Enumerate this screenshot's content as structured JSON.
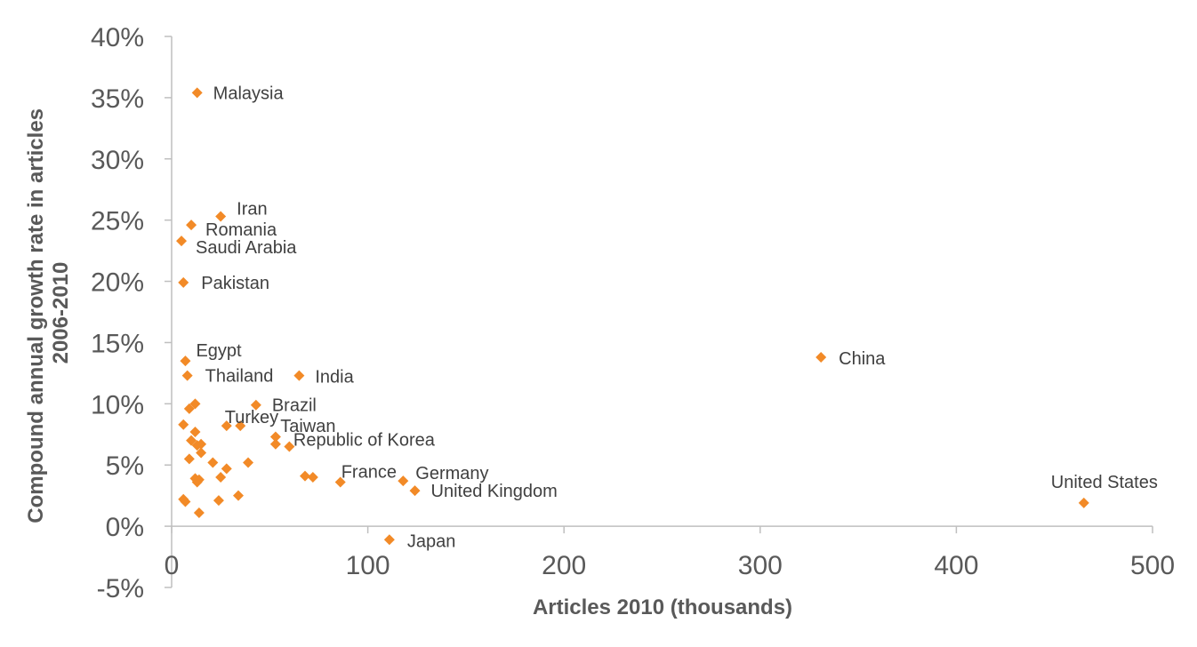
{
  "chart_data": {
    "type": "scatter",
    "xlabel": "Articles 2010 (thousands)",
    "ylabel_lines": [
      "Compound annual growth rate in articles",
      "2006-2010"
    ],
    "xlim": [
      0,
      500
    ],
    "ylim": [
      -5,
      40
    ],
    "x_ticks": [
      {
        "value": 0,
        "label": "0"
      },
      {
        "value": 100,
        "label": "100"
      },
      {
        "value": 200,
        "label": "200"
      },
      {
        "value": 300,
        "label": "300"
      },
      {
        "value": 400,
        "label": "400"
      },
      {
        "value": 500,
        "label": "500"
      }
    ],
    "y_ticks": [
      {
        "value": 40,
        "label": "40%"
      },
      {
        "value": 35,
        "label": "35%"
      },
      {
        "value": 30,
        "label": "30%"
      },
      {
        "value": 25,
        "label": "25%"
      },
      {
        "value": 20,
        "label": "20%"
      },
      {
        "value": 15,
        "label": "15%"
      },
      {
        "value": 10,
        "label": "10%"
      },
      {
        "value": 5,
        "label": "5%"
      },
      {
        "value": 0,
        "label": "0%"
      },
      {
        "value": -5,
        "label": "-5%"
      }
    ],
    "grid": false,
    "marker_color": "#f28a27",
    "points": [
      {
        "x": 13,
        "y": 35.4,
        "label": "Malaysia"
      },
      {
        "x": 25,
        "y": 25.3,
        "label": "Iran"
      },
      {
        "x": 10,
        "y": 24.6,
        "label": "Romania"
      },
      {
        "x": 5,
        "y": 23.3,
        "label": "Saudi Arabia"
      },
      {
        "x": 6,
        "y": 19.9,
        "label": "Pakistan"
      },
      {
        "x": 7,
        "y": 13.5,
        "label": "Egypt"
      },
      {
        "x": 8,
        "y": 12.3,
        "label": "Thailand"
      },
      {
        "x": 65,
        "y": 12.3,
        "label": "India"
      },
      {
        "x": 331,
        "y": 13.8,
        "label": "China"
      },
      {
        "x": 43,
        "y": 9.9,
        "label": "Brazil"
      },
      {
        "x": 28,
        "y": 8.2,
        "label": "Turkey"
      },
      {
        "x": 35,
        "y": 8.2,
        "label": "Taiwan"
      },
      {
        "x": 53,
        "y": 7.3,
        "label": "Republic of Korea"
      },
      {
        "x": 86,
        "y": 3.6,
        "label": "France"
      },
      {
        "x": 118,
        "y": 3.7,
        "label": "Germany"
      },
      {
        "x": 124,
        "y": 2.9,
        "label": "United Kingdom"
      },
      {
        "x": 465,
        "y": 1.9,
        "label": "United States"
      },
      {
        "x": 111,
        "y": -1.1,
        "label": "Japan"
      },
      {
        "x": 9,
        "y": 9.6
      },
      {
        "x": 12,
        "y": 10.0
      },
      {
        "x": 6,
        "y": 8.3
      },
      {
        "x": 12,
        "y": 7.7
      },
      {
        "x": 10,
        "y": 7.0
      },
      {
        "x": 13,
        "y": 6.6
      },
      {
        "x": 15,
        "y": 6.7
      },
      {
        "x": 15,
        "y": 6.0
      },
      {
        "x": 9,
        "y": 5.5
      },
      {
        "x": 21,
        "y": 5.2
      },
      {
        "x": 28,
        "y": 4.7
      },
      {
        "x": 25,
        "y": 4.0
      },
      {
        "x": 12,
        "y": 3.9
      },
      {
        "x": 14,
        "y": 3.8
      },
      {
        "x": 13,
        "y": 3.6
      },
      {
        "x": 39,
        "y": 5.2
      },
      {
        "x": 53,
        "y": 6.7
      },
      {
        "x": 60,
        "y": 6.5
      },
      {
        "x": 68,
        "y": 4.1
      },
      {
        "x": 72,
        "y": 4.0
      },
      {
        "x": 34,
        "y": 2.5
      },
      {
        "x": 24,
        "y": 2.1
      },
      {
        "x": 6,
        "y": 2.2
      },
      {
        "x": 7,
        "y": 2.0
      },
      {
        "x": 14,
        "y": 1.1
      }
    ]
  }
}
